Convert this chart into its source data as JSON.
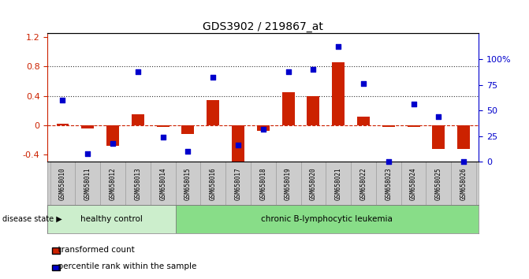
{
  "title": "GDS3902 / 219867_at",
  "samples": [
    "GSM658010",
    "GSM658011",
    "GSM658012",
    "GSM658013",
    "GSM658014",
    "GSM658015",
    "GSM658016",
    "GSM658017",
    "GSM658018",
    "GSM658019",
    "GSM658020",
    "GSM658021",
    "GSM658022",
    "GSM658023",
    "GSM658024",
    "GSM658025",
    "GSM658026"
  ],
  "transformed_count": [
    0.02,
    -0.05,
    -0.28,
    0.15,
    -0.02,
    -0.12,
    0.34,
    -0.52,
    -0.08,
    0.45,
    0.4,
    0.86,
    0.12,
    -0.02,
    -0.02,
    -0.32,
    -0.32
  ],
  "percentile_rank": [
    0.6,
    0.08,
    0.18,
    0.88,
    0.24,
    0.1,
    0.82,
    0.16,
    0.32,
    0.88,
    0.9,
    1.12,
    0.76,
    0.0,
    0.56,
    0.44,
    0.0
  ],
  "healthy_control_count": 5,
  "disease_state_label": "disease state",
  "healthy_label": "healthy control",
  "disease_label": "chronic B-lymphocytic leukemia",
  "legend_red": "transformed count",
  "legend_blue": "percentile rank within the sample",
  "bar_color_red": "#cc2200",
  "bar_color_blue": "#0000cc",
  "zero_line_color": "#cc2200",
  "dotted_line_color": "#333333",
  "ylim_left": [
    -0.5,
    1.25
  ],
  "yticks_left": [
    -0.4,
    0.0,
    0.4,
    0.8,
    1.2
  ],
  "ytick_labels_left": [
    "-0.4",
    "0",
    "0.4",
    "0.8",
    "1.2"
  ],
  "ylim_right": [
    0.0,
    1.25
  ],
  "yticks_right": [
    0.0,
    0.25,
    0.5,
    0.75,
    1.0
  ],
  "ytick_labels_right": [
    "0",
    "25",
    "50",
    "75",
    "100%"
  ],
  "hlines": [
    0.4,
    0.8
  ],
  "healthy_bg": "#cceecc",
  "disease_bg": "#88dd88",
  "ticklabel_bg": "#cccccc"
}
